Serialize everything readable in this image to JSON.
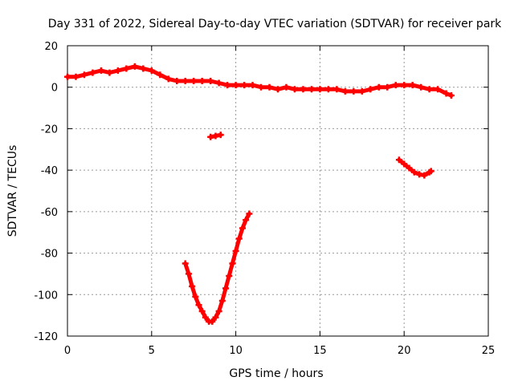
{
  "chart_data": {
    "type": "scatter",
    "title": "Day 331 of 2022, Sidereal Day-to-day VTEC variation (SDTVAR) for receiver park",
    "xlabel": "GPS time / hours",
    "ylabel": "SDTVAR / TECUs",
    "xlim": [
      0,
      25
    ],
    "ylim": [
      -120,
      20
    ],
    "xticks": [
      0,
      5,
      10,
      15,
      20,
      25
    ],
    "yticks": [
      -120,
      -100,
      -80,
      -60,
      -40,
      -20,
      0,
      20
    ],
    "grid": true,
    "marker_color": "#ff0000",
    "series": [
      {
        "name": "main band",
        "points": [
          [
            0.0,
            5
          ],
          [
            0.5,
            5
          ],
          [
            1.0,
            6
          ],
          [
            1.5,
            7
          ],
          [
            2.0,
            8
          ],
          [
            2.5,
            7
          ],
          [
            3.0,
            8
          ],
          [
            3.5,
            9
          ],
          [
            4.0,
            10
          ],
          [
            4.5,
            9
          ],
          [
            5.0,
            8
          ],
          [
            5.5,
            6
          ],
          [
            6.0,
            4
          ],
          [
            6.5,
            3
          ],
          [
            7.0,
            3
          ],
          [
            7.5,
            3
          ],
          [
            8.0,
            3
          ],
          [
            8.5,
            3
          ],
          [
            9.0,
            2
          ],
          [
            9.5,
            1
          ],
          [
            10.0,
            1
          ],
          [
            10.5,
            1
          ],
          [
            11.0,
            1
          ],
          [
            11.5,
            0
          ],
          [
            12.0,
            0
          ],
          [
            12.5,
            -1
          ],
          [
            13.0,
            0
          ],
          [
            13.5,
            -1
          ],
          [
            14.0,
            -1
          ],
          [
            14.5,
            -1
          ],
          [
            15.0,
            -1
          ],
          [
            15.5,
            -1
          ],
          [
            16.0,
            -1
          ],
          [
            16.5,
            -2
          ],
          [
            17.0,
            -2
          ],
          [
            17.5,
            -2
          ],
          [
            18.0,
            -1
          ],
          [
            18.5,
            0
          ],
          [
            19.0,
            0
          ],
          [
            19.5,
            1
          ],
          [
            20.0,
            1
          ],
          [
            20.5,
            1
          ],
          [
            21.0,
            0
          ],
          [
            21.5,
            -1
          ],
          [
            22.0,
            -1
          ],
          [
            22.5,
            -3
          ],
          [
            22.8,
            -4
          ]
        ]
      },
      {
        "name": "short segment",
        "points": [
          [
            8.5,
            -24
          ],
          [
            8.8,
            -23.5
          ],
          [
            9.1,
            -23
          ]
        ]
      },
      {
        "name": "right arc",
        "points": [
          [
            19.7,
            -35
          ],
          [
            20.0,
            -37
          ],
          [
            20.3,
            -39
          ],
          [
            20.6,
            -41
          ],
          [
            20.9,
            -42
          ],
          [
            21.2,
            -42.5
          ],
          [
            21.5,
            -41
          ],
          [
            21.6,
            -40.5
          ]
        ]
      },
      {
        "name": "deep dip",
        "points": [
          [
            7.0,
            -85
          ],
          [
            7.2,
            -90
          ],
          [
            7.4,
            -96
          ],
          [
            7.6,
            -101
          ],
          [
            7.8,
            -105
          ],
          [
            8.0,
            -108
          ],
          [
            8.2,
            -111
          ],
          [
            8.4,
            -113
          ],
          [
            8.6,
            -113
          ],
          [
            8.8,
            -111
          ],
          [
            9.0,
            -108
          ],
          [
            9.2,
            -103
          ],
          [
            9.4,
            -97
          ],
          [
            9.6,
            -91
          ],
          [
            9.8,
            -85
          ],
          [
            10.0,
            -79
          ],
          [
            10.2,
            -73
          ],
          [
            10.4,
            -68
          ],
          [
            10.6,
            -64
          ],
          [
            10.8,
            -61
          ]
        ]
      }
    ]
  }
}
